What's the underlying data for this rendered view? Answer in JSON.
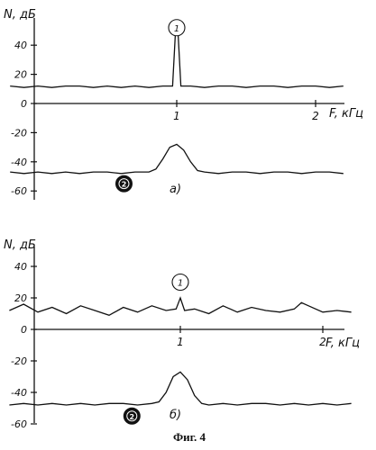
{
  "caption": "Фиг. 4",
  "chart_data": [
    {
      "type": "line",
      "panel_label": "а)",
      "ylabel": "N, дБ",
      "xlabel": "F, кГц",
      "yticks": [
        "40",
        "20",
        "0",
        "-20",
        "-40",
        "-60"
      ],
      "ytick_values": [
        40,
        20,
        0,
        -20,
        -40,
        -60
      ],
      "xticks": [
        "1",
        "2"
      ],
      "xtick_values": [
        1,
        2
      ],
      "xlim": [
        -0.2,
        2.2
      ],
      "ylim": [
        -65,
        55
      ],
      "grid": false,
      "series": [
        {
          "marker": "1",
          "x": [
            -0.2,
            -0.1,
            0,
            0.1,
            0.2,
            0.3,
            0.4,
            0.5,
            0.6,
            0.7,
            0.8,
            0.9,
            0.97,
            0.99,
            1.0,
            1.01,
            1.03,
            1.1,
            1.2,
            1.3,
            1.4,
            1.5,
            1.6,
            1.7,
            1.8,
            1.9,
            2.0,
            2.1,
            2.2
          ],
          "y": [
            12,
            11,
            12,
            11,
            12,
            12,
            11,
            12,
            11,
            12,
            11,
            12,
            12,
            48,
            49,
            48,
            12,
            12,
            11,
            12,
            12,
            11,
            12,
            12,
            11,
            12,
            12,
            11,
            12
          ]
        },
        {
          "marker": "2",
          "x": [
            -0.2,
            -0.1,
            0,
            0.1,
            0.2,
            0.3,
            0.4,
            0.5,
            0.6,
            0.7,
            0.8,
            0.85,
            0.9,
            0.95,
            1.0,
            1.05,
            1.1,
            1.15,
            1.2,
            1.3,
            1.4,
            1.5,
            1.6,
            1.7,
            1.8,
            1.9,
            2.0,
            2.1,
            2.2
          ],
          "y": [
            -47,
            -48,
            -47,
            -48,
            -47,
            -48,
            -47,
            -47,
            -48,
            -47,
            -47,
            -45,
            -38,
            -30,
            -28,
            -32,
            -40,
            -46,
            -47,
            -48,
            -47,
            -47,
            -48,
            -47,
            -47,
            -48,
            -47,
            -47,
            -48
          ]
        }
      ]
    },
    {
      "type": "line",
      "panel_label": "б)",
      "ylabel": "N, дБ",
      "xlabel": "F, кГц",
      "yticks": [
        "40",
        "20",
        "0",
        "-20",
        "-40",
        "-60"
      ],
      "ytick_values": [
        40,
        20,
        0,
        -20,
        -40,
        -60
      ],
      "xticks": [
        "1",
        "2"
      ],
      "xtick_values": [
        1,
        2
      ],
      "xlim": [
        -0.2,
        2.2
      ],
      "ylim": [
        -65,
        55
      ],
      "grid": false,
      "series": [
        {
          "marker": "1",
          "x": [
            -0.2,
            -0.1,
            0,
            0.1,
            0.2,
            0.3,
            0.4,
            0.5,
            0.6,
            0.7,
            0.8,
            0.9,
            0.97,
            1.0,
            1.03,
            1.1,
            1.2,
            1.3,
            1.4,
            1.5,
            1.6,
            1.7,
            1.8,
            1.85,
            1.9,
            2.0,
            2.1,
            2.2
          ],
          "y": [
            12,
            16,
            11,
            14,
            10,
            15,
            12,
            9,
            14,
            11,
            15,
            12,
            13,
            20,
            12,
            13,
            10,
            15,
            11,
            14,
            12,
            11,
            13,
            17,
            15,
            11,
            12,
            11
          ]
        },
        {
          "marker": "2",
          "x": [
            -0.2,
            -0.1,
            0,
            0.1,
            0.2,
            0.3,
            0.4,
            0.5,
            0.6,
            0.7,
            0.8,
            0.85,
            0.9,
            0.95,
            1.0,
            1.05,
            1.1,
            1.15,
            1.2,
            1.3,
            1.4,
            1.5,
            1.6,
            1.7,
            1.8,
            1.9,
            2.0,
            2.1,
            2.2
          ],
          "y": [
            -48,
            -47,
            -48,
            -47,
            -48,
            -47,
            -48,
            -47,
            -47,
            -48,
            -47,
            -46,
            -40,
            -30,
            -27,
            -32,
            -42,
            -47,
            -48,
            -47,
            -48,
            -47,
            -47,
            -48,
            -47,
            -48,
            -47,
            -48,
            -47
          ]
        }
      ]
    }
  ]
}
